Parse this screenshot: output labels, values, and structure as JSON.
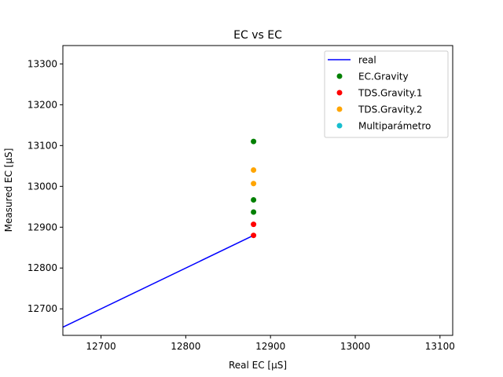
{
  "chart_data": {
    "type": "scatter",
    "title": "EC vs EC",
    "xlabel": "Real EC [μS]",
    "ylabel": "Measured EC [μS]",
    "xlim": [
      12655,
      13115
    ],
    "ylim": [
      12635,
      13345
    ],
    "xticks": [
      12700,
      12800,
      12900,
      13000,
      13100
    ],
    "yticks": [
      12700,
      12800,
      12900,
      13000,
      13100,
      13200,
      13300
    ],
    "grid": false,
    "legend_position": "top-right",
    "line": {
      "name": "real",
      "color": "#0000ff",
      "x": [
        12655,
        12880
      ],
      "y": [
        12655,
        12880
      ]
    },
    "series": [
      {
        "name": "EC.Gravity",
        "color": "#008000",
        "x": [
          12880,
          12880,
          12880
        ],
        "y": [
          13110,
          12967,
          12937
        ]
      },
      {
        "name": "TDS.Gravity.1",
        "color": "#ff0000",
        "x": [
          12880,
          12880
        ],
        "y": [
          12907,
          12880
        ]
      },
      {
        "name": "TDS.Gravity.2",
        "color": "#ffa500",
        "x": [
          12880,
          12880
        ],
        "y": [
          13040,
          13007
        ]
      },
      {
        "name": "Multiparámetro",
        "color": "#17becf",
        "x": [],
        "y": []
      }
    ]
  }
}
